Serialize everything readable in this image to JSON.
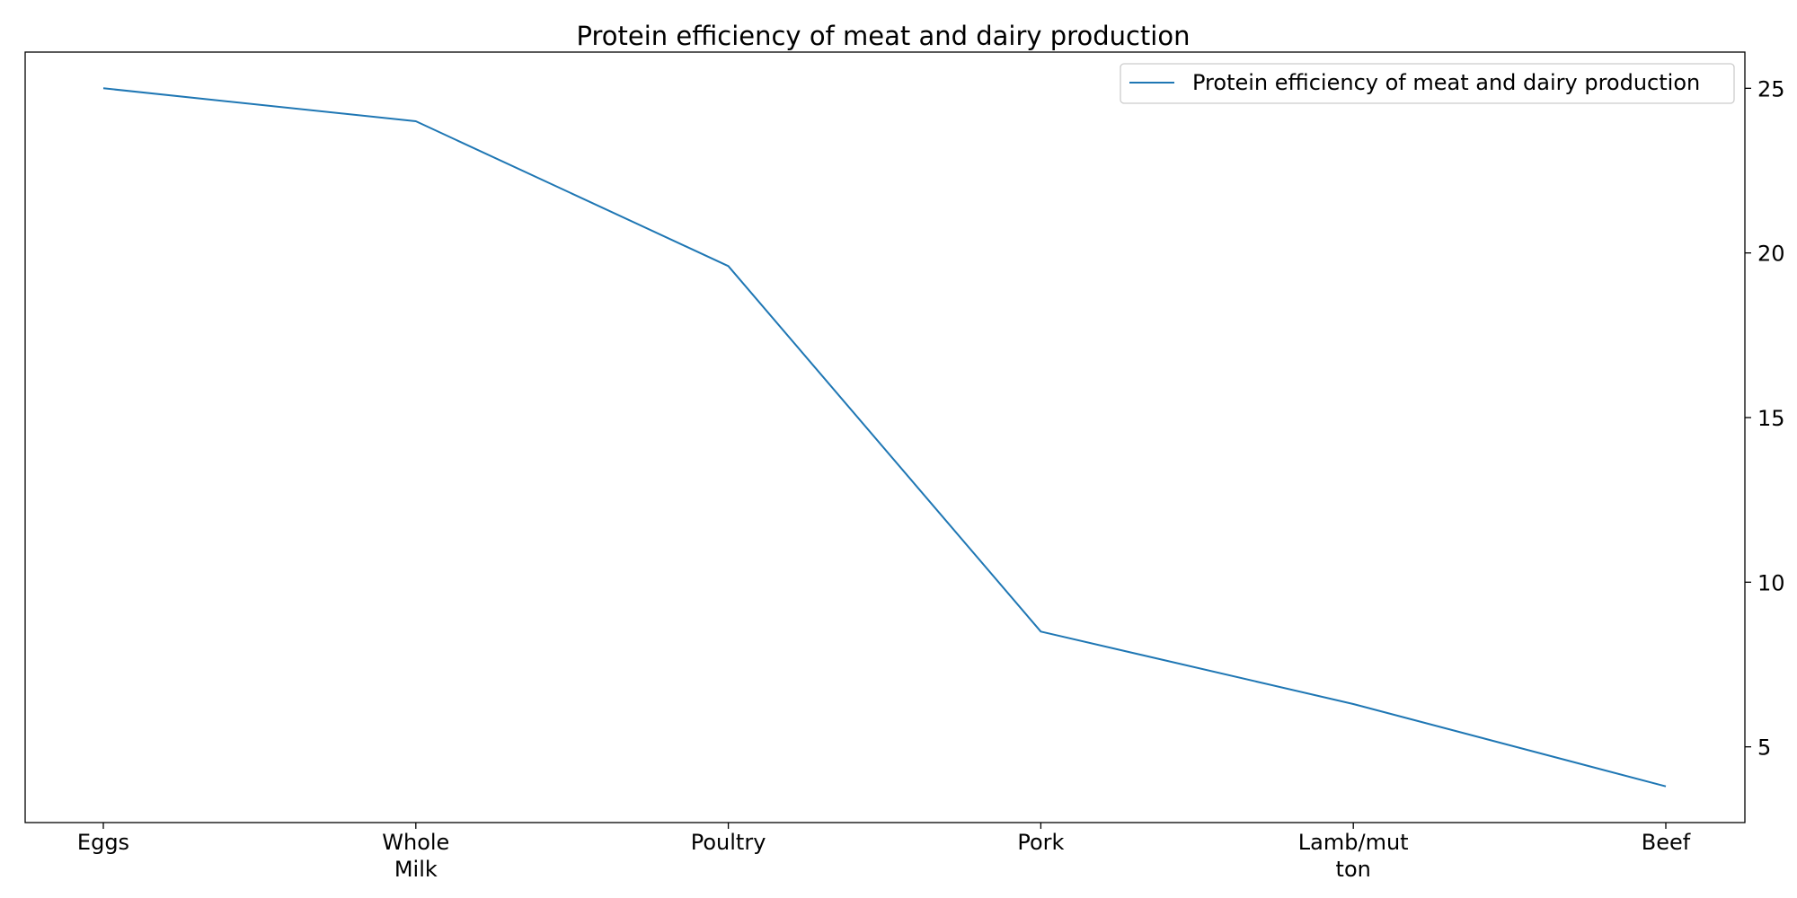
{
  "chart_data": {
    "type": "line",
    "title": "Protein efficiency of meat and dairy production",
    "xlabel": "",
    "ylabel": "",
    "categories": [
      [
        "Eggs"
      ],
      [
        "Whole",
        "Milk"
      ],
      [
        "Poultry"
      ],
      [
        "Pork"
      ],
      [
        "Lamb/mut",
        "ton"
      ],
      [
        "Beef"
      ]
    ],
    "series": [
      {
        "name": "Protein efficiency of meat and dairy production",
        "color": "#1f77b4",
        "values": [
          25.0,
          24.0,
          19.6,
          8.5,
          6.3,
          3.8
        ]
      }
    ],
    "y_axis_side": "right",
    "y_ticks": [
      5,
      10,
      15,
      20,
      25
    ],
    "ylim": [
      2.7,
      26.1
    ],
    "grid": false,
    "legend": {
      "position": "top-right"
    }
  }
}
